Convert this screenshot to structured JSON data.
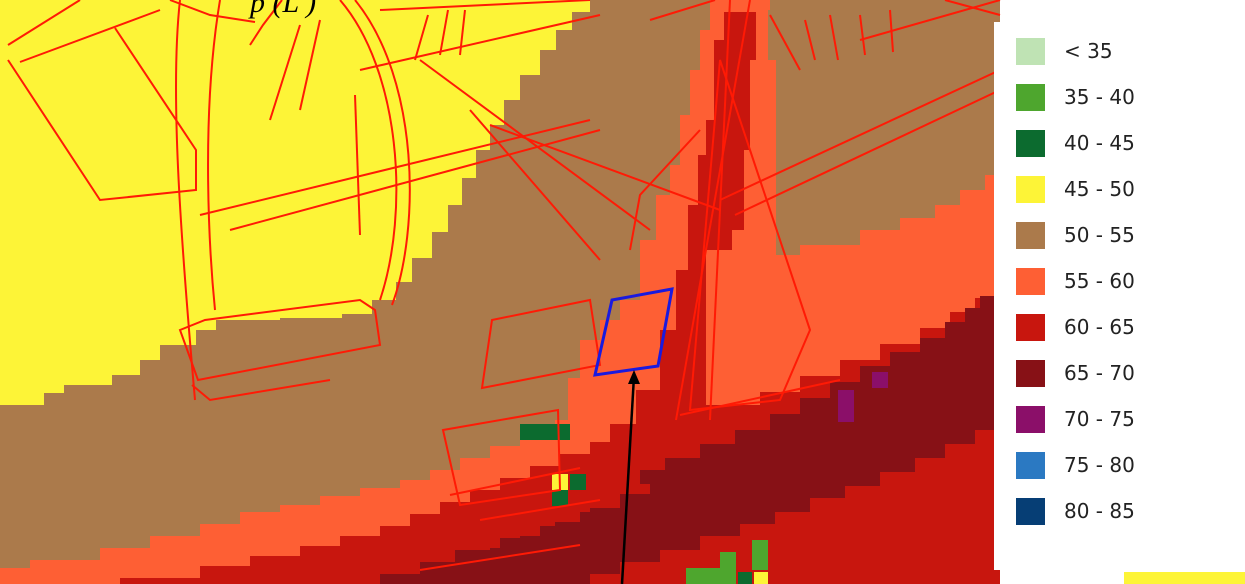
{
  "caption": "p (L )",
  "legend": {
    "items": [
      {
        "label": "< 35",
        "color": "#bfe3b4"
      },
      {
        "label": "35 - 40",
        "color": "#4ea62e"
      },
      {
        "label": "40 - 45",
        "color": "#0c6b2f"
      },
      {
        "label": "45 - 50",
        "color": "#fdf437"
      },
      {
        "label": "50 - 55",
        "color": "#ab7a4b"
      },
      {
        "label": "55 - 60",
        "color": "#fe5f34"
      },
      {
        "label": "60 - 65",
        "color": "#c8160e"
      },
      {
        "label": "65 - 70",
        "color": "#871116"
      },
      {
        "label": "70 - 75",
        "color": "#8b0f69"
      },
      {
        "label": "75 - 80",
        "color": "#2b79c2"
      },
      {
        "label": "80 - 85",
        "color": "#063e75"
      }
    ]
  },
  "map": {
    "parcel_line_color": "#ff1a05",
    "site_outline_color": "#1a1adf",
    "pointer_arrow_color": "#000000"
  }
}
